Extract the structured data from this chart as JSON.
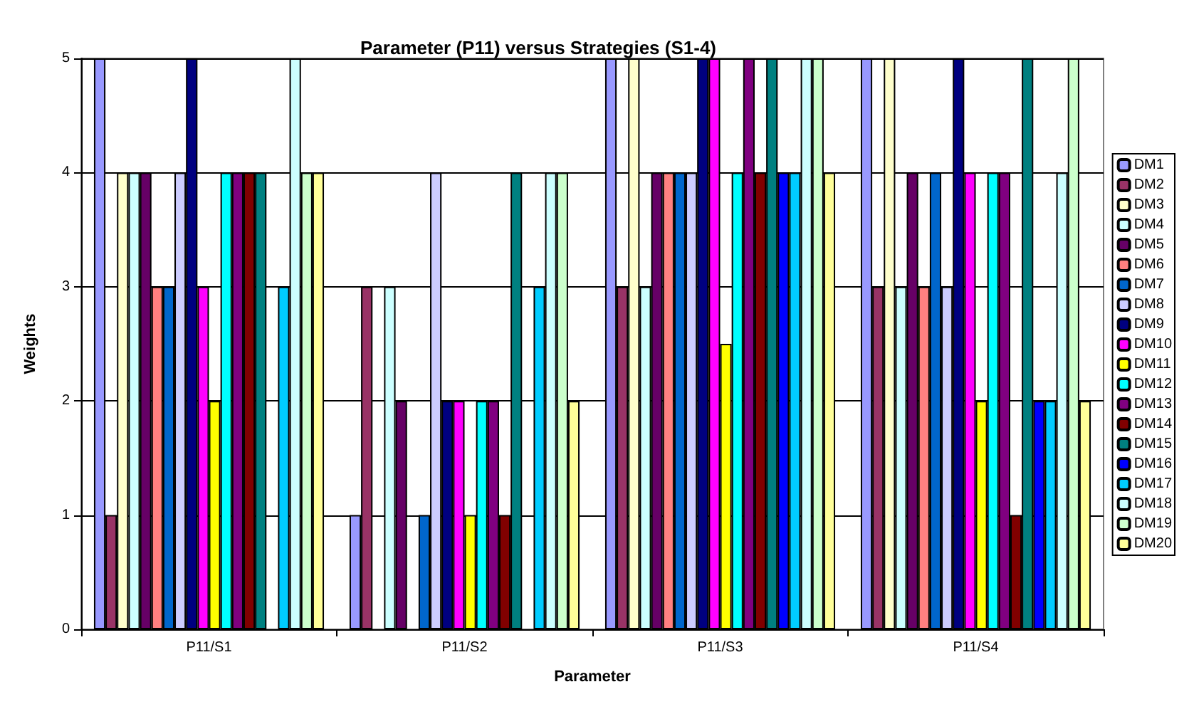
{
  "chart_data": {
    "type": "bar",
    "title": "Parameter (P11) versus Strategies (S1-4)",
    "xlabel": "Parameter",
    "ylabel": "Weights",
    "categories": [
      "P11/S1",
      "P11/S2",
      "P11/S3",
      "P11/S4"
    ],
    "ylim": [
      0,
      5
    ],
    "yticks": [
      0,
      1,
      2,
      3,
      4,
      5
    ],
    "grid": "y",
    "legend": "right",
    "series": [
      {
        "name": "DM1",
        "color": "#9999ff",
        "values": [
          5,
          1,
          5,
          5
        ]
      },
      {
        "name": "DM2",
        "color": "#993366",
        "values": [
          1,
          3,
          3,
          3
        ]
      },
      {
        "name": "DM3",
        "color": "#ffffcc",
        "values": [
          4,
          0,
          5,
          5
        ]
      },
      {
        "name": "DM4",
        "color": "#ccffff",
        "values": [
          4,
          3,
          3,
          3
        ]
      },
      {
        "name": "DM5",
        "color": "#660066",
        "values": [
          4,
          2,
          4,
          4
        ]
      },
      {
        "name": "DM6",
        "color": "#ff8080",
        "values": [
          3,
          0,
          4,
          3
        ]
      },
      {
        "name": "DM7",
        "color": "#0066cc",
        "values": [
          3,
          1,
          4,
          4
        ]
      },
      {
        "name": "DM8",
        "color": "#ccccff",
        "values": [
          4,
          4,
          4,
          3
        ]
      },
      {
        "name": "DM9",
        "color": "#000080",
        "values": [
          5,
          2,
          5,
          5
        ]
      },
      {
        "name": "DM10",
        "color": "#ff00ff",
        "values": [
          3,
          2,
          5,
          4
        ]
      },
      {
        "name": "DM11",
        "color": "#ffff00",
        "values": [
          2,
          1,
          2.5,
          2
        ]
      },
      {
        "name": "DM12",
        "color": "#00ffff",
        "values": [
          4,
          2,
          4,
          4
        ]
      },
      {
        "name": "DM13",
        "color": "#800080",
        "values": [
          4,
          2,
          5,
          4
        ]
      },
      {
        "name": "DM14",
        "color": "#800000",
        "values": [
          4,
          1,
          4,
          1
        ]
      },
      {
        "name": "DM15",
        "color": "#008080",
        "values": [
          4,
          4,
          5,
          5
        ]
      },
      {
        "name": "DM16",
        "color": "#0000ff",
        "values": [
          0,
          0,
          4,
          2
        ]
      },
      {
        "name": "DM17",
        "color": "#00ccff",
        "values": [
          3,
          3,
          4,
          2
        ]
      },
      {
        "name": "DM18",
        "color": "#ccffff",
        "values": [
          5,
          4,
          5,
          4
        ]
      },
      {
        "name": "DM19",
        "color": "#ccffcc",
        "values": [
          4,
          4,
          5,
          5
        ]
      },
      {
        "name": "DM20",
        "color": "#ffff99",
        "values": [
          4,
          2,
          4,
          2
        ]
      }
    ]
  }
}
